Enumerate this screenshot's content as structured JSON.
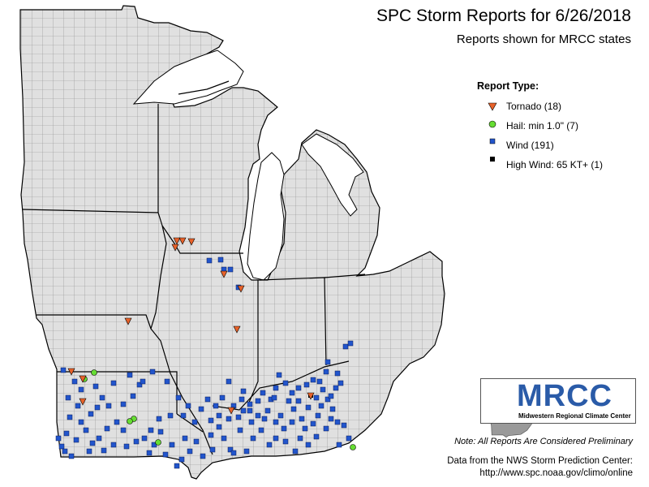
{
  "title": "SPC Storm Reports for 6/26/2018",
  "subtitle": "Reports shown for MRCC states",
  "legend": {
    "title": "Report Type:",
    "items": [
      {
        "label": "Tornado (18)",
        "symbol": "down-triangle",
        "color": "#e8622a"
      },
      {
        "label": "Hail: min 1.0\" (7)",
        "symbol": "circle",
        "color": "#66dd33"
      },
      {
        "label": "Wind (191)",
        "symbol": "square",
        "color": "#2255cc"
      },
      {
        "label": "High Wind: 65 KT+ (1)",
        "symbol": "square",
        "color": "#000000"
      }
    ]
  },
  "logo": {
    "name": "MRCC",
    "subtitle": "Midwestern Regional Climate Center"
  },
  "note": "Note: All Reports Are Considered Preliminary",
  "source_line1": "Data from the NWS Storm Prediction Center:",
  "source_line2": "http://www.spc.noaa.gov/climo/online",
  "colors": {
    "land": "#e0e0e0",
    "background": "#ffffff",
    "boundary": "#000000"
  }
}
